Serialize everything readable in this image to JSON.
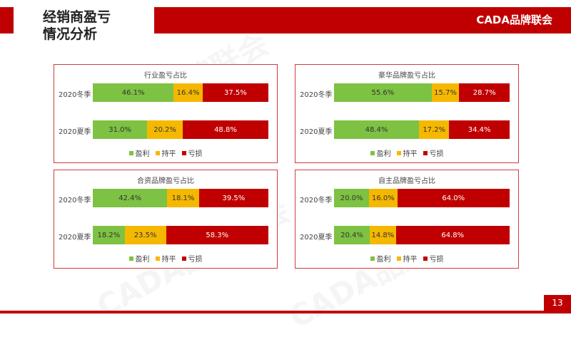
{
  "page": {
    "title_lines": [
      "经销商盈亏",
      "情况分析"
    ],
    "brand": "CADA品牌联会",
    "page_number": "13",
    "watermark": "CADA品牌联会"
  },
  "legend": [
    {
      "label": "盈利",
      "color": "#7dc242"
    },
    {
      "label": "持平",
      "color": "#f5b800"
    },
    {
      "label": "亏损",
      "color": "#c00000"
    }
  ],
  "chart_data": [
    {
      "type": "bar",
      "stacked": true,
      "orientation": "horizontal",
      "percent_stacked": true,
      "title": "行业盈亏占比",
      "categories": [
        "2020冬季",
        "2020夏季"
      ],
      "series": [
        {
          "name": "盈利",
          "values": [
            46.1,
            31.0
          ],
          "labels": [
            "46.1%",
            "31.0%"
          ],
          "color": "#7dc242"
        },
        {
          "name": "持平",
          "values": [
            16.4,
            20.2
          ],
          "labels": [
            "16.4%",
            "20.2%"
          ],
          "color": "#f5b800"
        },
        {
          "name": "亏损",
          "values": [
            37.5,
            48.8
          ],
          "labels": [
            "37.5%",
            "48.8%"
          ],
          "color": "#c00000"
        }
      ]
    },
    {
      "type": "bar",
      "stacked": true,
      "orientation": "horizontal",
      "percent_stacked": true,
      "title": "豪华品牌盈亏占比",
      "categories": [
        "2020冬季",
        "2020夏季"
      ],
      "series": [
        {
          "name": "盈利",
          "values": [
            55.6,
            48.4
          ],
          "labels": [
            "55.6%",
            "48.4%"
          ],
          "color": "#7dc242"
        },
        {
          "name": "持平",
          "values": [
            15.7,
            17.2
          ],
          "labels": [
            "15.7%",
            "17.2%"
          ],
          "color": "#f5b800"
        },
        {
          "name": "亏损",
          "values": [
            28.7,
            34.4
          ],
          "labels": [
            "28.7%",
            "34.4%"
          ],
          "color": "#c00000"
        }
      ]
    },
    {
      "type": "bar",
      "stacked": true,
      "orientation": "horizontal",
      "percent_stacked": true,
      "title": "合资品牌盈亏占比",
      "categories": [
        "2020冬季",
        "2020夏季"
      ],
      "series": [
        {
          "name": "盈利",
          "values": [
            42.4,
            18.2
          ],
          "labels": [
            "42.4%",
            "18.2%"
          ],
          "color": "#7dc242"
        },
        {
          "name": "持平",
          "values": [
            18.1,
            23.5
          ],
          "labels": [
            "18.1%",
            "23.5%"
          ],
          "color": "#f5b800"
        },
        {
          "name": "亏损",
          "values": [
            39.5,
            58.3
          ],
          "labels": [
            "39.5%",
            "58.3%"
          ],
          "color": "#c00000"
        }
      ]
    },
    {
      "type": "bar",
      "stacked": true,
      "orientation": "horizontal",
      "percent_stacked": true,
      "title": "自主品牌盈亏占比",
      "categories": [
        "2020冬季",
        "2020夏季"
      ],
      "series": [
        {
          "name": "盈利",
          "values": [
            20.0,
            20.4
          ],
          "labels": [
            "20.0%",
            "20.4%"
          ],
          "color": "#7dc242"
        },
        {
          "name": "持平",
          "values": [
            16.0,
            14.8
          ],
          "labels": [
            "16.0%",
            "14.8%"
          ],
          "color": "#f5b800"
        },
        {
          "name": "亏损",
          "values": [
            64.0,
            64.8
          ],
          "labels": [
            "64.0%",
            "64.8%"
          ],
          "color": "#c00000"
        }
      ]
    }
  ]
}
